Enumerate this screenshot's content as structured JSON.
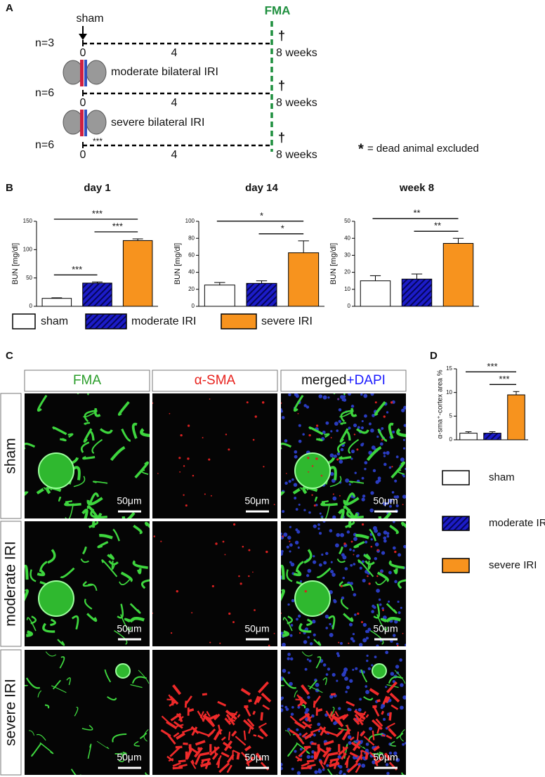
{
  "panel_a": {
    "label": "A",
    "marker": "FMA",
    "arms": [
      {
        "n": "n=3",
        "start_label": "sham",
        "ticks": [
          "0",
          "4",
          "8 weeks"
        ],
        "end": "†"
      },
      {
        "n": "n=6",
        "injury_label": "moderate bilateral IRI",
        "ticks": [
          "0",
          "4",
          "8 weeks"
        ],
        "end": "†"
      },
      {
        "n": "n=6",
        "injury_label": "severe bilateral IRI",
        "deaths": "***",
        "ticks": [
          "0",
          "4",
          "8 weeks"
        ],
        "end": "†"
      }
    ],
    "note_symbol": "*",
    "note": "= dead animal excluded"
  },
  "panel_b_label": "B",
  "groups": [
    {
      "name": "sham",
      "color": "#ffffff"
    },
    {
      "name": "moderate IRI",
      "color": "#1c1cc8",
      "hatch": true
    },
    {
      "name": "severe IRI",
      "color": "#f7931e"
    }
  ],
  "chart_data": [
    {
      "type": "bar",
      "title": "day 1",
      "y_label": "BUN [mg/dl]",
      "values": [
        14,
        41,
        116
      ],
      "errors": [
        1,
        2,
        3
      ],
      "ylim": [
        0,
        150
      ],
      "yticks": [
        0,
        50,
        100,
        150
      ],
      "comparisons": [
        {
          "from": 0,
          "to": 1,
          "label": "***"
        },
        {
          "from": 1,
          "to": 2,
          "label": "***"
        },
        {
          "from": 0,
          "to": 2,
          "label": "***"
        }
      ]
    },
    {
      "type": "bar",
      "title": "day 14",
      "y_label": "BUN [mg/dl]",
      "values": [
        25,
        27,
        63
      ],
      "errors": [
        3,
        3,
        14
      ],
      "ylim": [
        0,
        100
      ],
      "yticks": [
        0,
        20,
        40,
        60,
        80,
        100
      ],
      "comparisons": [
        {
          "from": 1,
          "to": 2,
          "label": "*"
        },
        {
          "from": 0,
          "to": 2,
          "label": "*"
        }
      ]
    },
    {
      "type": "bar",
      "title": "week 8",
      "y_label": "BUN [mg/dl]",
      "values": [
        15,
        16,
        37
      ],
      "errors": [
        3,
        3,
        3
      ],
      "ylim": [
        0,
        50
      ],
      "yticks": [
        0,
        10,
        20,
        30,
        40,
        50
      ],
      "comparisons": [
        {
          "from": 1,
          "to": 2,
          "label": "**"
        },
        {
          "from": 0,
          "to": 2,
          "label": "**"
        }
      ]
    },
    {
      "type": "bar",
      "y_label": "α-sma⁺-cortex area %",
      "values": [
        1.4,
        1.4,
        9.5
      ],
      "errors": [
        0.3,
        0.3,
        0.7
      ],
      "ylim": [
        0,
        15
      ],
      "yticks": [
        0,
        5,
        10,
        15
      ],
      "comparisons": [
        {
          "from": 1,
          "to": 2,
          "label": "***"
        },
        {
          "from": 0,
          "to": 2,
          "label": "***"
        }
      ]
    }
  ],
  "panel_c": {
    "label": "C",
    "columns": [
      "FMA",
      "α-SMA",
      "merged"
    ],
    "merged_suffix": "+DAPI",
    "rows": [
      "sham",
      "moderate IRI",
      "severe IRI"
    ],
    "scale_bar": "50μm"
  },
  "panel_d_label": "D"
}
